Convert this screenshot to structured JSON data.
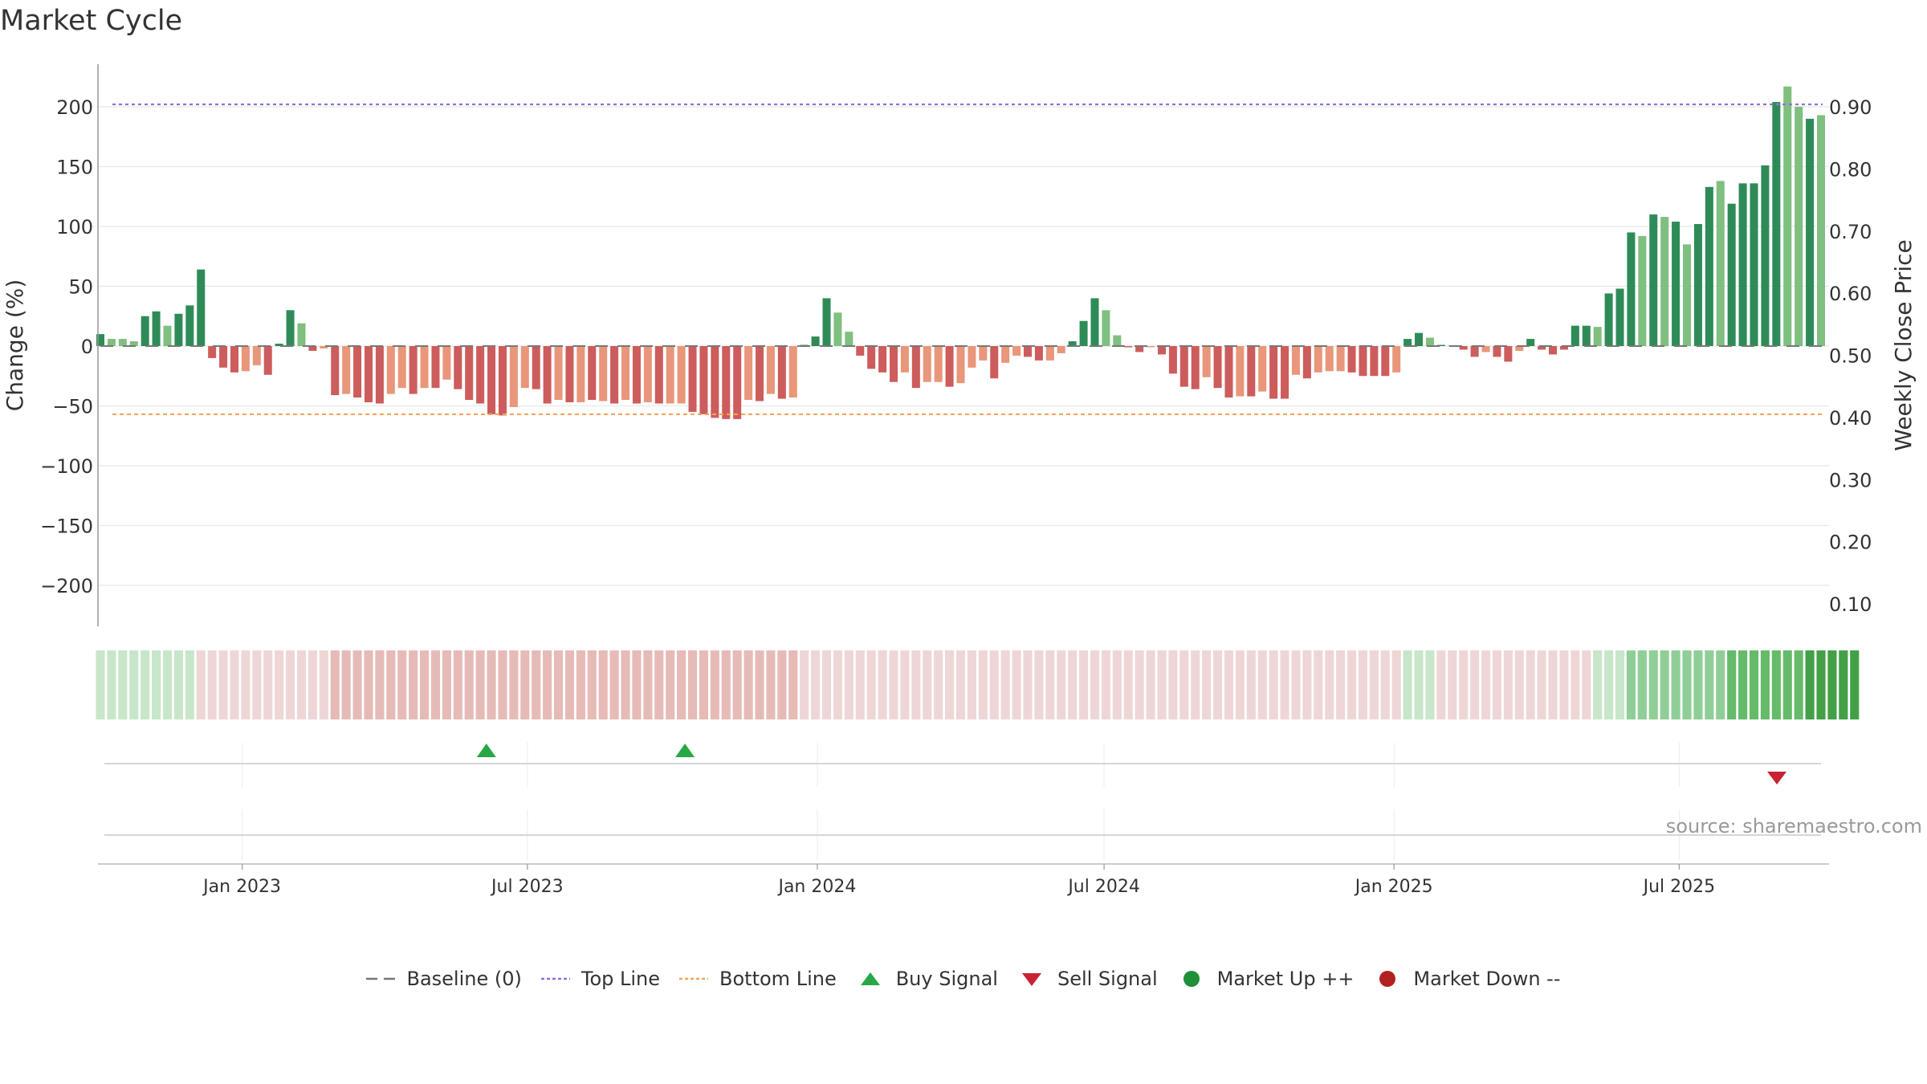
{
  "title": "Market Cycle",
  "source": "source: sharemaestro.com",
  "colors": {
    "up_dark": "#2e8b57",
    "up_light": "#7fbf7f",
    "down_dark": "#cd5c5c",
    "down_light": "#e9967a",
    "top_line": "#9370db",
    "bottom_line": "#f4a460",
    "baseline": "#777777",
    "buy": "#28a745",
    "sell": "#c82333",
    "market_up": "#1f8f3a",
    "market_down": "#b22222"
  },
  "legend": [
    {
      "label": "Baseline (0)",
      "icon": "dash-line-icon",
      "color": "#777777"
    },
    {
      "label": "Top Line",
      "icon": "dotted-line-icon",
      "color": "#9370db"
    },
    {
      "label": "Bottom Line",
      "icon": "dotted-line-icon",
      "color": "#f4a460"
    },
    {
      "label": "Buy Signal",
      "icon": "triangle-up-icon",
      "color": "#28a745"
    },
    {
      "label": "Sell Signal",
      "icon": "triangle-down-icon",
      "color": "#c82333"
    },
    {
      "label": "Market Up ++",
      "icon": "circle-icon",
      "color": "#1f8f3a"
    },
    {
      "label": "Market Down --",
      "icon": "circle-icon",
      "color": "#b22222"
    }
  ],
  "chart_data": {
    "type": "bar",
    "title": "Market Cycle",
    "ylabel": "Change (%)",
    "y2label": "Weekly Close Price",
    "ylim": [
      -235,
      235
    ],
    "y2lim": [
      0.06,
      0.995
    ],
    "yticks": [
      200,
      150,
      100,
      50,
      0,
      -50,
      -100,
      -150,
      -200
    ],
    "ytick_labels": [
      "200",
      "150",
      "100",
      "50",
      "0",
      "−50",
      "−100",
      "−150",
      "−200"
    ],
    "y2ticks": [
      0.9,
      0.8,
      0.7,
      0.6,
      0.5,
      0.4,
      0.3,
      0.2,
      0.1
    ],
    "y2tick_labels": [
      "0.90",
      "0.80",
      "0.70",
      "0.60",
      "0.50",
      "0.40",
      "0.30",
      "0.20",
      "0.10"
    ],
    "date_range": [
      "2022-10-03",
      "2025-09-29"
    ],
    "xticks": [
      {
        "date": "2023-01-01",
        "label": "Jan 2023"
      },
      {
        "date": "2023-07-01",
        "label": "Jul 2023"
      },
      {
        "date": "2024-01-01",
        "label": "Jan 2024"
      },
      {
        "date": "2024-07-01",
        "label": "Jul 2024"
      },
      {
        "date": "2025-01-01",
        "label": "Jan 2025"
      },
      {
        "date": "2025-07-01",
        "label": "Jul 2025"
      }
    ],
    "top_line": 202,
    "bottom_line": -57,
    "baseline": 0,
    "values": [
      10,
      6,
      6,
      4,
      25,
      29,
      17,
      27,
      34,
      64,
      -10,
      -18,
      -22,
      -21,
      -16,
      -24,
      2,
      30,
      19,
      -4,
      -2,
      -41,
      -40,
      -43,
      -47,
      -48,
      -40,
      -35,
      -40,
      -35,
      -35,
      -28,
      -36,
      -45,
      -48,
      -57,
      -58,
      -51,
      -35,
      -36,
      -48,
      -45,
      -47,
      -47,
      -45,
      -46,
      -48,
      -45,
      -48,
      -47,
      -48,
      -48,
      -48,
      -55,
      -57,
      -60,
      -61,
      -61,
      -45,
      -46,
      -40,
      -44,
      -43,
      1,
      8,
      40,
      28,
      12,
      -8,
      -19,
      -22,
      -30,
      -22,
      -35,
      -30,
      -30,
      -34,
      -31,
      -18,
      -12,
      -27,
      -14,
      -8,
      -9,
      -12,
      -12,
      -6,
      4,
      21,
      40,
      30,
      9,
      -1,
      -5,
      -1,
      -7,
      -23,
      -34,
      -36,
      -26,
      -35,
      -43,
      -42,
      -42,
      -38,
      -44,
      -44,
      -24,
      -27,
      -22,
      -21,
      -21,
      -22,
      -25,
      -25,
      -25,
      -22,
      6,
      11,
      7,
      1,
      0,
      -3,
      -9,
      -5,
      -9,
      -13,
      -4,
      6,
      -3,
      -7,
      -3,
      17,
      17,
      16,
      44,
      48,
      95,
      92,
      110,
      108,
      104,
      85,
      102,
      133,
      138,
      119,
      136,
      136,
      151,
      204,
      217,
      200,
      190,
      193
    ],
    "shades": [
      1,
      0,
      0,
      0,
      1,
      1,
      0,
      1,
      1,
      1,
      1,
      1,
      1,
      0,
      0,
      1,
      1,
      1,
      0,
      1,
      0,
      1,
      0,
      1,
      1,
      1,
      0,
      0,
      1,
      0,
      1,
      0,
      1,
      1,
      1,
      1,
      1,
      0,
      0,
      1,
      1,
      0,
      1,
      0,
      1,
      0,
      1,
      0,
      1,
      0,
      1,
      0,
      0,
      1,
      1,
      1,
      1,
      1,
      0,
      1,
      0,
      1,
      0,
      1,
      1,
      1,
      0,
      0,
      1,
      1,
      1,
      1,
      0,
      1,
      0,
      0,
      1,
      0,
      0,
      0,
      1,
      0,
      0,
      1,
      1,
      0,
      0,
      1,
      1,
      1,
      0,
      0,
      1,
      1,
      0,
      1,
      1,
      1,
      1,
      0,
      1,
      1,
      0,
      1,
      0,
      1,
      1,
      0,
      1,
      0,
      0,
      0,
      1,
      1,
      1,
      1,
      0,
      1,
      1,
      0,
      1,
      0,
      1,
      1,
      0,
      1,
      1,
      0,
      1,
      1,
      1,
      1,
      1,
      1,
      0,
      1,
      1,
      1,
      0,
      1,
      0,
      1,
      0,
      1,
      1,
      0,
      1,
      1,
      1,
      1,
      1,
      0,
      0,
      1
    ],
    "heat_strip": {
      "levels": [
        -1,
        -1,
        -1,
        -1,
        -1,
        -1,
        -1,
        -1,
        -1,
        1,
        1,
        1,
        1,
        1,
        1,
        1,
        1,
        1,
        1,
        1,
        1,
        2,
        2,
        2,
        2,
        2,
        2,
        2,
        2,
        2,
        2,
        2,
        2,
        2,
        2,
        2,
        2,
        2,
        2,
        2,
        2,
        2,
        2,
        2,
        2,
        2,
        2,
        2,
        2,
        2,
        2,
        2,
        2,
        2,
        2,
        2,
        2,
        2,
        2,
        2,
        2,
        2,
        2,
        1,
        1,
        1,
        1,
        1,
        1,
        1,
        1,
        1,
        1,
        1,
        1,
        1,
        1,
        1,
        1,
        1,
        1,
        1,
        1,
        1,
        1,
        1,
        1,
        1,
        1,
        1,
        1,
        1,
        1,
        1,
        1,
        1,
        1,
        1,
        1,
        1,
        1,
        1,
        1,
        1,
        1,
        1,
        1,
        1,
        1,
        1,
        1,
        1,
        1,
        1,
        1,
        1,
        1,
        -1,
        -1,
        -1,
        1,
        1,
        1,
        1,
        1,
        1,
        1,
        1,
        1,
        1,
        1,
        1,
        1,
        1,
        -1,
        -1,
        -1,
        -2,
        -2,
        -2,
        -2,
        -2,
        -2,
        -2,
        -2,
        -2,
        -3,
        -3,
        -3,
        -3,
        -3,
        -3,
        -3,
        -4,
        -4,
        -4,
        -4,
        -4
      ]
    },
    "buy_signals": [
      "2023-06-05",
      "2023-10-09"
    ],
    "sell_signals": [
      "2025-09-01"
    ]
  }
}
